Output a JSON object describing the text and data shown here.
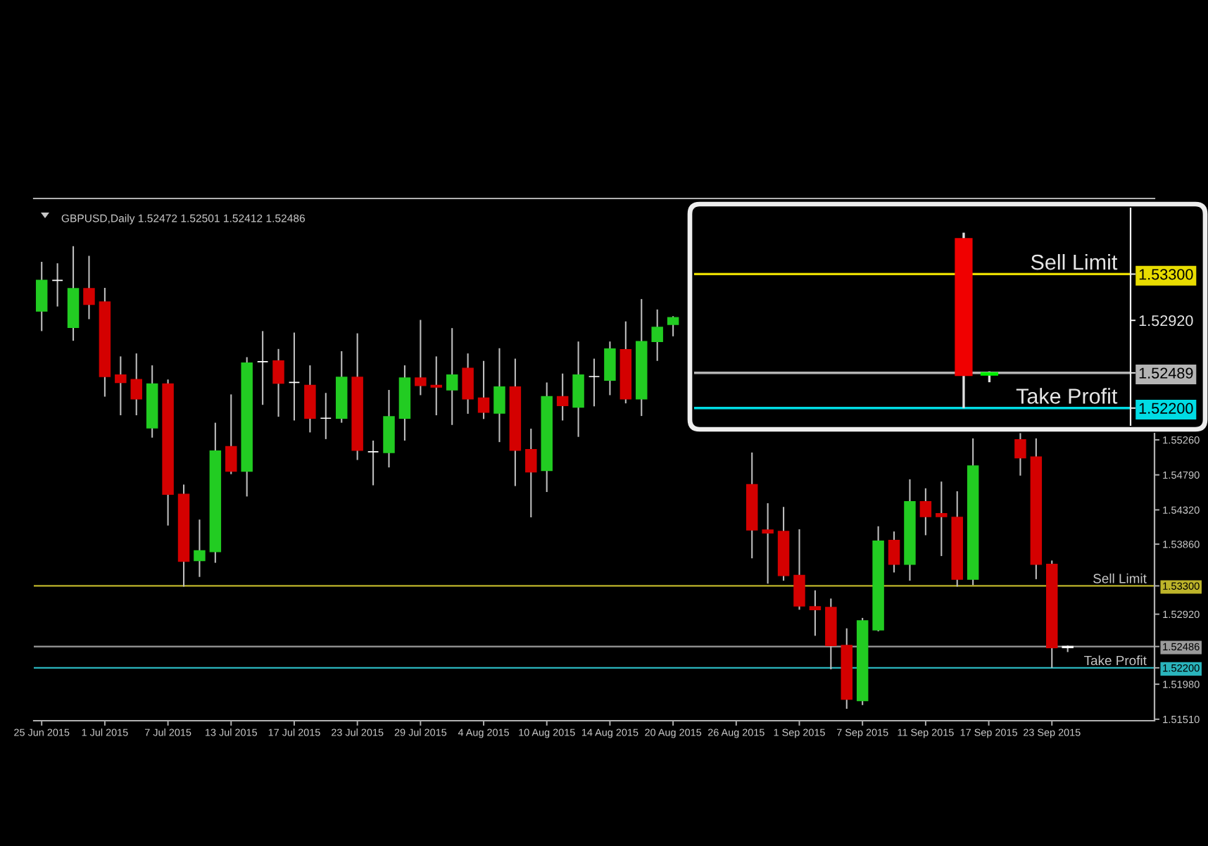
{
  "chart_data": [
    {
      "type": "candlestick",
      "title": "GBPUSD,Daily 1.52472 1.52501 1.52412 1.52486",
      "categories": [
        "25 Jun 2015",
        null,
        null,
        null,
        "1 Jul 2015",
        null,
        null,
        null,
        "7 Jul 2015",
        null,
        null,
        null,
        "13 Jul 2015",
        null,
        null,
        null,
        "17 Jul 2015",
        null,
        null,
        null,
        "23 Jul 2015",
        null,
        null,
        null,
        "29 Jul 2015",
        null,
        null,
        null,
        "4 Aug 2015",
        null,
        null,
        null,
        "10 Aug 2015",
        null,
        null,
        null,
        "14 Aug 2015",
        null,
        null,
        null,
        "20 Aug 2015",
        null,
        null,
        null,
        "26 Aug 2015",
        null,
        null,
        null,
        "1 Sep 2015",
        null,
        null,
        null,
        "7 Sep 2015",
        null,
        null,
        null,
        "11 Sep 2015",
        null,
        null,
        null,
        "17 Sep 2015",
        null,
        null,
        null,
        "23 Sep 2015",
        null,
        null,
        null,
        null,
        null,
        null
      ],
      "ohlc": [
        [
          1.5699,
          1.5765,
          1.5672,
          1.574
        ],
        [
          1.574,
          1.5763,
          1.5705,
          1.574
        ],
        [
          1.5677,
          1.5786,
          1.5659,
          1.5729
        ],
        [
          1.5729,
          1.5773,
          1.5688,
          1.5708
        ],
        [
          1.5711,
          1.573,
          1.5584,
          1.5611
        ],
        [
          1.5613,
          1.5638,
          1.5559,
          1.5603
        ],
        [
          1.5607,
          1.5642,
          1.5559,
          1.5581
        ],
        [
          1.5542,
          1.5626,
          1.5529,
          1.5601
        ],
        [
          1.5601,
          1.5607,
          1.5411,
          1.5453
        ],
        [
          1.5453,
          1.5466,
          1.5329,
          1.5363
        ],
        [
          1.5364,
          1.5419,
          1.5342,
          1.5377
        ],
        [
          1.5376,
          1.5549,
          1.5361,
          1.5511
        ],
        [
          1.5517,
          1.5587,
          1.548,
          1.5484
        ],
        [
          1.5484,
          1.5637,
          1.545,
          1.5629
        ],
        [
          1.5631,
          1.5672,
          1.5573,
          1.5631
        ],
        [
          1.5632,
          1.5648,
          1.5557,
          1.5602
        ],
        [
          1.5603,
          1.567,
          1.5552,
          1.5603
        ],
        [
          1.5599,
          1.5626,
          1.5536,
          1.5555
        ],
        [
          1.5555,
          1.5589,
          1.5527,
          1.5555
        ],
        [
          1.5555,
          1.5645,
          1.5549,
          1.561
        ],
        [
          1.561,
          1.5669,
          1.5499,
          1.5512
        ],
        [
          1.551,
          1.5525,
          1.5465,
          1.551
        ],
        [
          1.5509,
          1.5593,
          1.5489,
          1.5557
        ],
        [
          1.5555,
          1.5626,
          1.5525,
          1.5609
        ],
        [
          1.5609,
          1.5687,
          1.5586,
          1.5599
        ],
        [
          1.5599,
          1.5638,
          1.5559,
          1.5597
        ],
        [
          1.5593,
          1.5676,
          1.5546,
          1.5613
        ],
        [
          1.5622,
          1.5642,
          1.5561,
          1.5581
        ],
        [
          1.5582,
          1.5632,
          1.5554,
          1.5563
        ],
        [
          1.5562,
          1.5649,
          1.5523,
          1.5597
        ],
        [
          1.5597,
          1.5635,
          1.5464,
          1.5512
        ],
        [
          1.5513,
          1.5541,
          1.5422,
          1.5483
        ],
        [
          1.5485,
          1.5603,
          1.5456,
          1.5584
        ],
        [
          1.5584,
          1.5615,
          1.5552,
          1.5572
        ],
        [
          1.557,
          1.5658,
          1.553,
          1.5613
        ],
        [
          1.5611,
          1.5635,
          1.5571,
          1.5611
        ],
        [
          1.5606,
          1.5658,
          1.5586,
          1.5648
        ],
        [
          1.5647,
          1.5685,
          1.5575,
          1.5581
        ],
        [
          1.5581,
          1.5715,
          1.5558,
          1.5658
        ],
        [
          1.5658,
          1.5701,
          1.5632,
          1.5677
        ],
        [
          1.5681,
          1.5692,
          1.5665,
          1.569
        ],
        null,
        null,
        null,
        null,
        [
          1.5466,
          1.5509,
          1.5367,
          1.5405
        ],
        [
          1.5405,
          1.5441,
          1.5333,
          1.5401
        ],
        [
          1.5403,
          1.5436,
          1.5337,
          1.5344
        ],
        [
          1.5344,
          1.5406,
          1.5298,
          1.5303
        ],
        [
          1.5302,
          1.5324,
          1.5263,
          1.5298
        ],
        [
          1.5301,
          1.5313,
          1.5218,
          1.525
        ],
        [
          1.525,
          1.5273,
          1.5165,
          1.5178
        ],
        [
          1.5176,
          1.5287,
          1.517,
          1.5283
        ],
        [
          1.5271,
          1.541,
          1.5269,
          1.539
        ],
        [
          1.5391,
          1.5403,
          1.5348,
          1.5359
        ],
        [
          1.5359,
          1.5473,
          1.5337,
          1.5443
        ],
        [
          1.5443,
          1.5461,
          1.5398,
          1.5423
        ],
        [
          1.5427,
          1.547,
          1.537,
          1.5423
        ],
        [
          1.5422,
          1.5457,
          1.5329,
          1.5339
        ],
        [
          1.5339,
          1.5528,
          1.5331,
          1.5491
        ],
        null,
        null,
        [
          1.5526,
          1.5535,
          1.5478,
          1.5502
        ],
        [
          1.5503,
          1.5528,
          1.5339,
          1.5359
        ],
        [
          1.5359,
          1.5364,
          1.522,
          1.5247
        ],
        [
          1.52472,
          1.52501,
          1.52412,
          1.52486
        ],
        null,
        null,
        null,
        null,
        null
      ],
      "color": "#bdbdbd",
      "colors": [
        "#22cc22",
        "#ffffff",
        "#22cc22",
        "#d40000",
        "#d40000",
        "#d40000",
        "#d40000",
        "#22cc22",
        "#d40000",
        "#d40000",
        "#22cc22",
        "#22cc22",
        "#d40000",
        "#22cc22",
        "#ffffff",
        "#d40000",
        "#ffffff",
        "#d40000",
        "#ffffff",
        "#22cc22",
        "#d40000",
        "#ffffff",
        "#22cc22",
        "#22cc22",
        "#d40000",
        "#d40000",
        "#22cc22",
        "#d40000",
        "#d40000",
        "#22cc22",
        "#d40000",
        "#d40000",
        "#22cc22",
        "#d40000",
        "#22cc22",
        "#ffffff",
        "#22cc22",
        "#d40000",
        "#22cc22",
        "#22cc22",
        "#22cc22",
        null,
        null,
        null,
        null,
        "#d40000",
        "#d40000",
        "#d40000",
        "#d40000",
        "#d40000",
        "#d40000",
        "#d40000",
        "#22cc22",
        "#22cc22",
        "#d40000",
        "#22cc22",
        "#d40000",
        "#d40000",
        "#d40000",
        "#22cc22",
        null,
        null,
        "#d40000",
        "#d40000",
        "#d40000",
        "#ffffff",
        null,
        null,
        null,
        null,
        null
      ],
      "ylim": [
        1.5149,
        1.585
      ],
      "yticks": [
        {
          "value": 1.5151,
          "label": "1.51510"
        },
        {
          "value": 1.5198,
          "label": "1.51980"
        },
        {
          "value": 1.522,
          "label": "1.52200"
        },
        {
          "value": 1.52486,
          "label": "1.52486"
        },
        {
          "value": 1.5292,
          "label": "1.52920"
        },
        {
          "value": 1.533,
          "label": "1.53300"
        },
        {
          "value": 1.5386,
          "label": "1.53860"
        },
        {
          "value": 1.5432,
          "label": "1.54320"
        },
        {
          "value": 1.5479,
          "label": "1.54790"
        },
        {
          "value": 1.5526,
          "label": "1.55260"
        }
      ],
      "ref_lines": [
        {
          "axis": "y",
          "value": 1.533,
          "label": "Sell Limit",
          "color": "#bdb42a"
        },
        {
          "axis": "y",
          "value": 1.52486,
          "color": "#9a9a9a"
        },
        {
          "axis": "y",
          "value": 1.522,
          "label": "Take Profit",
          "color": "#2ab4bc"
        }
      ]
    },
    {
      "type": "candlestick",
      "categories": [
        null,
        null,
        null,
        null,
        null,
        null,
        null,
        null,
        null,
        null,
        null,
        null,
        null,
        null,
        null,
        null,
        null
      ],
      "ohlc": [
        null,
        null,
        null,
        null,
        null,
        null,
        null,
        null,
        null,
        null,
        [
          1.5359,
          1.5364,
          1.522,
          1.5247
        ],
        [
          1.52472,
          1.52501,
          1.52412,
          1.52489
        ],
        null,
        null,
        null,
        null,
        null
      ],
      "color": "#e0e0e0",
      "colors": [
        null,
        null,
        null,
        null,
        null,
        null,
        null,
        null,
        null,
        null,
        "#f00000",
        "#00f000",
        null,
        null,
        null,
        null,
        null
      ],
      "ylim": [
        1.5206,
        1.5384
      ],
      "yticks": [
        {
          "value": 1.522,
          "label": "1.52200"
        },
        {
          "value": 1.52489,
          "label": "1.52489"
        },
        {
          "value": 1.5292,
          "label": "1.52920"
        },
        {
          "value": 1.533,
          "label": "1.53300"
        }
      ],
      "tick_labels": "y",
      "ref_lines": [
        {
          "axis": "y",
          "value": 1.533,
          "label": "Sell Limit",
          "color": "#e8dc00"
        },
        {
          "axis": "y",
          "value": 1.52489,
          "color": "#b4b4b4"
        },
        {
          "axis": "y",
          "value": 1.522,
          "label": "Take Profit",
          "color": "#00dce4"
        }
      ]
    }
  ]
}
